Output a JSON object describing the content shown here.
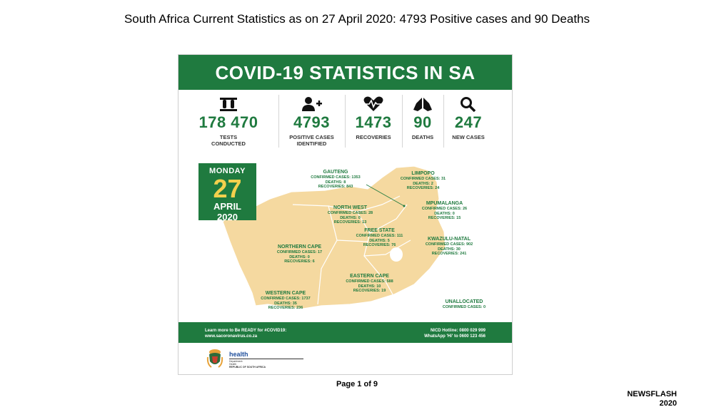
{
  "document": {
    "title": "South Africa Current Statistics as on 27 April 2020: 4793 Positive cases and 90 Deaths",
    "page_number": "Page 1 of 9",
    "newsflash_line1": "NEWSFLASH",
    "newsflash_line2": "2020"
  },
  "infographic": {
    "banner": "COVID-19 STATISTICS IN SA",
    "stats": [
      {
        "value": "178 470",
        "label_line1": "TESTS",
        "label_line2": "CONDUCTED",
        "icon": "test-tubes-icon"
      },
      {
        "value": "4793",
        "label_line1": "POSITIVE CASES",
        "label_line2": "IDENTIFIED",
        "icon": "person-plus-icon"
      },
      {
        "value": "1473",
        "label_line1": "RECOVERIES",
        "label_line2": "",
        "icon": "heartbeat-icon"
      },
      {
        "value": "90",
        "label_line1": "DEATHS",
        "label_line2": "",
        "icon": "praying-hands-icon"
      },
      {
        "value": "247",
        "label_line1": "NEW CASES",
        "label_line2": "",
        "icon": "magnifier-icon"
      }
    ],
    "date": {
      "day": "MONDAY",
      "number": "27",
      "month": "APRIL",
      "year": "2020"
    },
    "regions": [
      {
        "name": "GAUTENG",
        "l1": "CONFIRMED CASES: 1353",
        "l2": "DEATHS: 8",
        "l3": "RECOVERIES: 843"
      },
      {
        "name": "LIMPOPO",
        "l1": "CONFIRMED CASES: 31",
        "l2": "DEATHS: 2",
        "l3": "RECOVERIES: 24"
      },
      {
        "name": "MPUMALANGA",
        "l1": "CONFIRMED CASES: 26",
        "l2": "DEATHS: 0",
        "l3": "RECOVERIES: 15"
      },
      {
        "name": "NORTH WEST",
        "l1": "CONFIRMED CASES: 28",
        "l2": "DEATHS: 0",
        "l3": "RECOVERIES: 13"
      },
      {
        "name": "FREE STATE",
        "l1": "CONFIRMED CASES: 111",
        "l2": "DEATHS: 5",
        "l3": "RECOVERIES: 76"
      },
      {
        "name": "KWAZULU-NATAL",
        "l1": "CONFIRMED CASES: 902",
        "l2": "DEATHS: 30",
        "l3": "RECOVERIES: 241"
      },
      {
        "name": "NORTHERN CAPE",
        "l1": "CONFIRMED CASES: 17",
        "l2": "DEATHS: 0",
        "l3": "RECOVERIES: 6"
      },
      {
        "name": "EASTERN CAPE",
        "l1": "CONFIRMED CASES: 588",
        "l2": "DEATHS: 10",
        "l3": "RECOVERIES: 19"
      },
      {
        "name": "WESTERN CAPE",
        "l1": "CONFIRMED CASES: 1737",
        "l2": "DEATHS: 35",
        "l3": "RECOVERIES: 236"
      },
      {
        "name": "UNALLOCATED",
        "l1": "CONFIRMED CASES: 0",
        "l2": "",
        "l3": ""
      }
    ],
    "footer": {
      "left_line1": "Learn more to Be READY for #COVID19:",
      "left_line2": "www.sacoronavirus.co.za",
      "right_line1": "NICD Hotline: 0800 029 999",
      "right_line2": "WhatsApp 'Hi' to 0600 123 456"
    },
    "logo": {
      "health": "health",
      "dept_line1": "Department:",
      "dept_line2": "Health",
      "rsa": "REPUBLIC OF SOUTH AFRICA"
    },
    "colors": {
      "brand_green": "#1f7a3f",
      "map_fill": "#f5d9a0",
      "date_number": "#f3d04d"
    }
  }
}
